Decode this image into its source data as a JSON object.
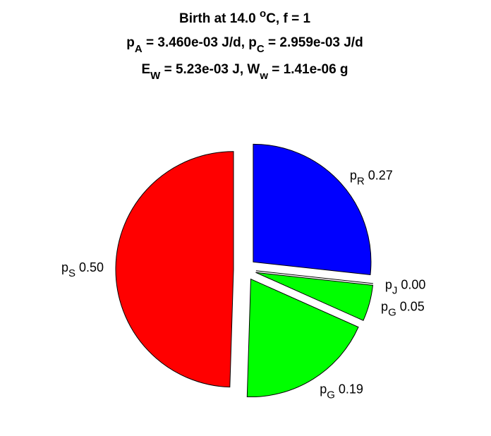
{
  "chart_data": {
    "type": "pie",
    "title_lines": [
      [
        {
          "text": "Birth at 14.0 "
        },
        {
          "text": "o",
          "shift": "sup"
        },
        {
          "text": "C, f = 1"
        }
      ],
      [
        {
          "text": "p"
        },
        {
          "text": "A",
          "shift": "sub"
        },
        {
          "text": " = 3.460e-03 J/d, p"
        },
        {
          "text": "C",
          "shift": "sub"
        },
        {
          "text": " = 2.959e-03 J/d"
        }
      ],
      [
        {
          "text": "E"
        },
        {
          "text": "W",
          "shift": "sub"
        },
        {
          "text": " = 5.23e-03 J, W"
        },
        {
          "text": "w",
          "shift": "sub"
        },
        {
          "text": " = 1.41e-06 g"
        }
      ]
    ],
    "categories": [
      {
        "text": "p",
        "sub": "R"
      },
      {
        "text": "p",
        "sub": "J"
      },
      {
        "text": "p",
        "sub": "G"
      },
      {
        "text": "p",
        "sub": "G"
      },
      {
        "text": "p",
        "sub": "S"
      }
    ],
    "values": [
      0.27,
      0.0,
      0.05,
      0.19,
      0.5
    ],
    "value_labels": [
      "0.27",
      "0.00",
      "0.05",
      "0.19",
      "0.50"
    ],
    "colors": [
      "#0000ff",
      "#ffffff",
      "#00ff00",
      "#00ff00",
      "#ff0000"
    ]
  }
}
